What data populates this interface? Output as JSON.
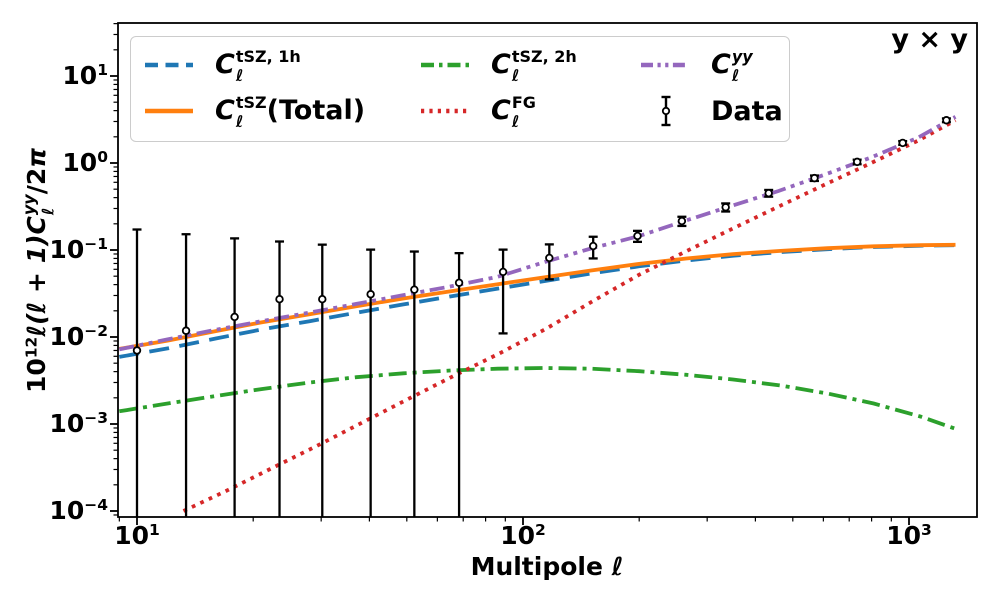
{
  "chart_data": {
    "type": "line",
    "corner_label": "y × y",
    "x_scale": "log",
    "y_scale": "log",
    "xlim": [
      8.93,
      1499
    ],
    "ylim": [
      8.53e-05,
      40.7
    ],
    "grid": false,
    "legend_position": "upper left",
    "xlabel_tokens": [
      {
        "t": "Multipole "
      },
      {
        "t": "ℓ",
        "i": true
      }
    ],
    "ylabel_tokens": [
      {
        "t": "10"
      },
      {
        "t": "12",
        "sup": true
      },
      {
        "t": "ℓ(ℓ + 1)",
        "i": true
      },
      {
        "t": "C",
        "i": true
      },
      {
        "stack": {
          "sup": "yy",
          "sub": "ℓ",
          "sup_i": true,
          "sub_i": true
        }
      },
      {
        "t": "/2"
      },
      {
        "t": "π",
        "i": true
      }
    ],
    "x_major_ticks": [
      {
        "value": 10,
        "exponent": "1"
      },
      {
        "value": 100,
        "exponent": "2"
      },
      {
        "value": 1000,
        "exponent": "3"
      }
    ],
    "y_major_ticks": [
      {
        "value": 10,
        "exponent": "1"
      },
      {
        "value": 1,
        "exponent": "0"
      },
      {
        "value": 0.1,
        "exponent": "−1"
      },
      {
        "value": 0.01,
        "exponent": "−2"
      },
      {
        "value": 0.001,
        "exponent": "−3"
      },
      {
        "value": 0.0001,
        "exponent": "−4"
      }
    ],
    "series": [
      {
        "key": "tsz-1h",
        "color": "#1f77b4",
        "style": "dashed",
        "base": "C",
        "sub": "ℓ",
        "sup": "tSZ, 1h",
        "sup_italic": false,
        "suffix": "",
        "points": [
          [
            9,
            0.0059
          ],
          [
            12,
            0.0074
          ],
          [
            16,
            0.0096
          ],
          [
            21,
            0.0122
          ],
          [
            28,
            0.0152
          ],
          [
            37,
            0.019
          ],
          [
            49,
            0.0237
          ],
          [
            65,
            0.0293
          ],
          [
            86,
            0.036
          ],
          [
            114,
            0.044
          ],
          [
            150,
            0.0537
          ],
          [
            200,
            0.065
          ],
          [
            265,
            0.0758
          ],
          [
            350,
            0.086
          ],
          [
            465,
            0.0945
          ],
          [
            615,
            0.1022
          ],
          [
            810,
            0.1082
          ],
          [
            1070,
            0.112
          ],
          [
            1320,
            0.1136
          ]
        ]
      },
      {
        "key": "tsz-total",
        "color": "#ff7f0e",
        "style": "solid",
        "base": "C",
        "sub": "ℓ",
        "sup": "tSZ",
        "sup_italic": false,
        "suffix": "(Total)",
        "points": [
          [
            9,
            0.0073
          ],
          [
            12,
            0.0091
          ],
          [
            16,
            0.0117
          ],
          [
            21,
            0.0147
          ],
          [
            28,
            0.0183
          ],
          [
            37,
            0.0226
          ],
          [
            49,
            0.0277
          ],
          [
            65,
            0.0336
          ],
          [
            86,
            0.0405
          ],
          [
            114,
            0.0486
          ],
          [
            150,
            0.0582
          ],
          [
            200,
            0.0693
          ],
          [
            265,
            0.0799
          ],
          [
            350,
            0.0897
          ],
          [
            465,
            0.0977
          ],
          [
            615,
            0.1048
          ],
          [
            810,
            0.1103
          ],
          [
            1070,
            0.1136
          ],
          [
            1320,
            0.1148
          ]
        ]
      },
      {
        "key": "tsz-2h",
        "color": "#2ca02c",
        "style": "dashdot",
        "base": "C",
        "sub": "ℓ",
        "sup": "tSZ, 2h",
        "sup_italic": false,
        "suffix": "",
        "points": [
          [
            9,
            0.0014
          ],
          [
            12,
            0.00172
          ],
          [
            16,
            0.0021
          ],
          [
            21,
            0.00252
          ],
          [
            28,
            0.003
          ],
          [
            37,
            0.00345
          ],
          [
            49,
            0.00383
          ],
          [
            65,
            0.00412
          ],
          [
            86,
            0.00432
          ],
          [
            114,
            0.0044
          ],
          [
            150,
            0.00432
          ],
          [
            200,
            0.00405
          ],
          [
            265,
            0.00368
          ],
          [
            350,
            0.00325
          ],
          [
            465,
            0.00277
          ],
          [
            615,
            0.00224
          ],
          [
            810,
            0.00172
          ],
          [
            1070,
            0.00122
          ],
          [
            1320,
            0.00088
          ]
        ]
      },
      {
        "key": "fg",
        "color": "#d62728",
        "style": "dotted",
        "base": "C",
        "sub": "ℓ",
        "sup": "FG",
        "sup_italic": false,
        "suffix": "",
        "points": [
          [
            13.2,
            0.0001
          ],
          [
            17,
            0.00017
          ],
          [
            22,
            0.0003
          ],
          [
            29,
            0.00055
          ],
          [
            38,
            0.00102
          ],
          [
            50,
            0.0019
          ],
          [
            66,
            0.00355
          ],
          [
            87,
            0.0065
          ],
          [
            115,
            0.0125
          ],
          [
            152,
            0.026
          ],
          [
            200,
            0.052
          ],
          [
            264,
            0.096
          ],
          [
            348,
            0.175
          ],
          [
            459,
            0.315
          ],
          [
            605,
            0.565
          ],
          [
            798,
            1.0
          ],
          [
            1053,
            1.8
          ],
          [
            1320,
            3.1
          ]
        ]
      },
      {
        "key": "yy",
        "color": "#9467bd",
        "style": "dashdotdot",
        "base": "C",
        "sub": "ℓ",
        "sup": "yy",
        "sup_italic": true,
        "suffix": "",
        "points": [
          [
            9,
            0.0072
          ],
          [
            12,
            0.0094
          ],
          [
            16,
            0.0121
          ],
          [
            21,
            0.0152
          ],
          [
            28,
            0.0191
          ],
          [
            37,
            0.024
          ],
          [
            49,
            0.0303
          ],
          [
            65,
            0.0382
          ],
          [
            86,
            0.0492
          ],
          [
            114,
            0.073
          ],
          [
            150,
            0.104
          ],
          [
            200,
            0.145
          ],
          [
            264,
            0.218
          ],
          [
            348,
            0.323
          ],
          [
            459,
            0.476
          ],
          [
            605,
            0.735
          ],
          [
            798,
            1.16
          ],
          [
            1053,
            1.95
          ],
          [
            1320,
            3.4
          ]
        ]
      }
    ],
    "data_series": {
      "key": "data",
      "label": "Data",
      "color": "#000000",
      "style": "errorbar",
      "points": [
        {
          "l": 10,
          "v": 0.007,
          "err": 0.165
        },
        {
          "l": 13.4,
          "v": 0.0118,
          "err": 0.14
        },
        {
          "l": 17.9,
          "v": 0.017,
          "err": 0.119
        },
        {
          "l": 23.4,
          "v": 0.0272,
          "err": 0.098
        },
        {
          "l": 30.2,
          "v": 0.0272,
          "err": 0.088
        },
        {
          "l": 40.3,
          "v": 0.031,
          "err": 0.07
        },
        {
          "l": 52.3,
          "v": 0.035,
          "err": 0.061
        },
        {
          "l": 68.3,
          "v": 0.042,
          "err": 0.05
        },
        {
          "l": 88.8,
          "v": 0.056,
          "err": 0.045
        },
        {
          "l": 117,
          "v": 0.081,
          "err": 0.035
        },
        {
          "l": 152,
          "v": 0.111,
          "err": 0.031
        },
        {
          "l": 198,
          "v": 0.145,
          "err": 0.021
        },
        {
          "l": 258,
          "v": 0.215,
          "err": 0.026
        },
        {
          "l": 335,
          "v": 0.31,
          "err": 0.033
        },
        {
          "l": 433,
          "v": 0.45,
          "err": 0.04
        },
        {
          "l": 569,
          "v": 0.67,
          "err": 0.048
        },
        {
          "l": 734,
          "v": 1.03,
          "err": 0.062
        },
        {
          "l": 963,
          "v": 1.7,
          "err": 0.085
        },
        {
          "l": 1250,
          "v": 3.1,
          "err": 0.155
        }
      ]
    },
    "colors": {
      "blue": "#1f77b4",
      "orange": "#ff7f0e",
      "green": "#2ca02c",
      "red": "#d62728",
      "purple": "#9467bd",
      "data": "#000000",
      "legend_border": "#cccccc"
    }
  }
}
